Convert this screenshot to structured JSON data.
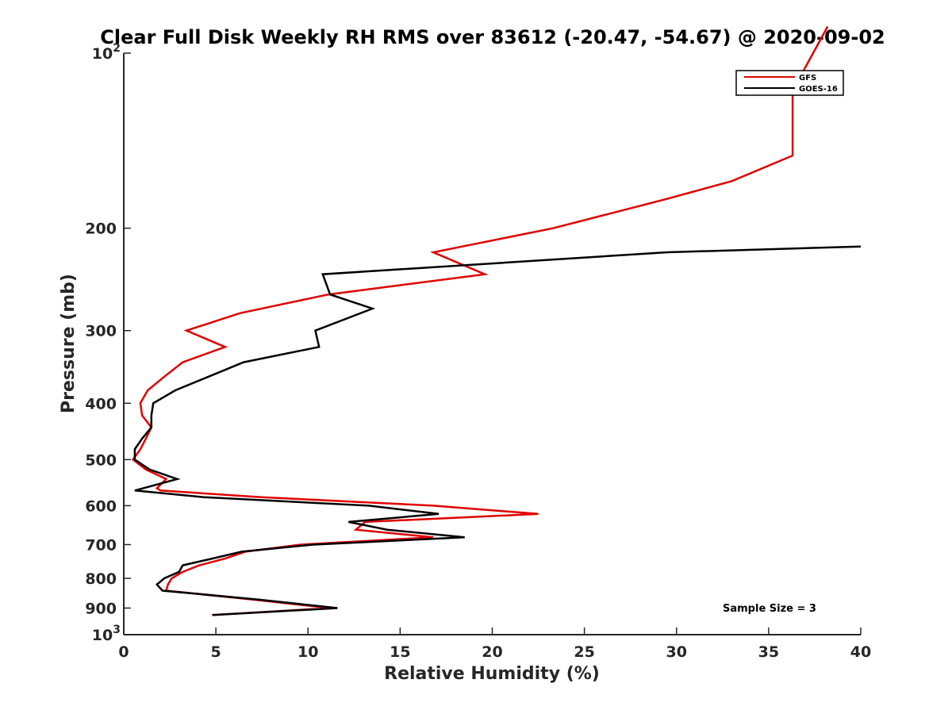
{
  "chart_data": {
    "type": "line",
    "title": "Clear Full Disk Weekly RH RMS over 83612 (-20.47, -54.67) @ 2020-09-02",
    "xlabel": "Relative Humidity (%)",
    "ylabel": "Pressure (mb)",
    "xlim": [
      0,
      40
    ],
    "ylim": [
      100,
      1000
    ],
    "y_scale": "log",
    "y_reversed": true,
    "x_ticks": [
      0,
      5,
      10,
      15,
      20,
      25,
      30,
      35,
      40
    ],
    "y_ticks": [
      {
        "value": 100,
        "label": "10",
        "sup": "2"
      },
      {
        "value": 200,
        "label": "200"
      },
      {
        "value": 300,
        "label": "300"
      },
      {
        "value": 400,
        "label": "400"
      },
      {
        "value": 500,
        "label": "500"
      },
      {
        "value": 600,
        "label": "600"
      },
      {
        "value": 700,
        "label": "700"
      },
      {
        "value": 800,
        "label": "800"
      },
      {
        "value": 900,
        "label": "900"
      },
      {
        "value": 1000,
        "label": "10",
        "sup": "3"
      }
    ],
    "grid": false,
    "legend_position": "top-right",
    "series": [
      {
        "name": "GFS",
        "color": "#e00000",
        "points": [
          [
            38.2,
            90
          ],
          [
            36.3,
            116
          ],
          [
            36.3,
            150
          ],
          [
            33.0,
            166
          ],
          [
            29.5,
            178
          ],
          [
            23.3,
            200
          ],
          [
            16.8,
            220
          ],
          [
            19.6,
            240
          ],
          [
            11.1,
            260
          ],
          [
            6.3,
            280
          ],
          [
            3.4,
            300
          ],
          [
            5.5,
            320
          ],
          [
            3.2,
            340
          ],
          [
            2.2,
            360
          ],
          [
            1.3,
            380
          ],
          [
            0.9,
            400
          ],
          [
            1.0,
            420
          ],
          [
            1.5,
            440
          ],
          [
            1.2,
            460
          ],
          [
            0.9,
            480
          ],
          [
            0.5,
            500
          ],
          [
            1.2,
            520
          ],
          [
            2.3,
            540
          ],
          [
            1.8,
            560
          ],
          [
            2.0,
            565
          ],
          [
            7.4,
            580
          ],
          [
            16.8,
            600
          ],
          [
            22.5,
            620
          ],
          [
            13.1,
            640
          ],
          [
            12.6,
            660
          ],
          [
            16.8,
            680
          ],
          [
            9.6,
            700
          ],
          [
            6.6,
            720
          ],
          [
            5.5,
            740
          ],
          [
            4.1,
            760
          ],
          [
            3.2,
            780
          ],
          [
            2.6,
            800
          ],
          [
            2.4,
            820
          ],
          [
            2.3,
            840
          ],
          [
            7.0,
            870
          ],
          [
            11.2,
            900
          ],
          [
            4.8,
            925
          ]
        ]
      },
      {
        "name": "GOES-16",
        "color": "#000000",
        "points": [
          [
            40.0,
            215
          ],
          [
            29.5,
            220
          ],
          [
            10.8,
            240
          ],
          [
            11.2,
            260
          ],
          [
            13.5,
            275
          ],
          [
            10.4,
            300
          ],
          [
            10.6,
            320
          ],
          [
            6.5,
            340
          ],
          [
            4.6,
            360
          ],
          [
            2.8,
            380
          ],
          [
            1.6,
            400
          ],
          [
            1.5,
            420
          ],
          [
            1.5,
            440
          ],
          [
            1.0,
            460
          ],
          [
            0.6,
            480
          ],
          [
            0.6,
            500
          ],
          [
            1.4,
            520
          ],
          [
            2.9,
            540
          ],
          [
            0.6,
            565
          ],
          [
            4.3,
            580
          ],
          [
            13.3,
            600
          ],
          [
            17.1,
            620
          ],
          [
            12.2,
            640
          ],
          [
            14.3,
            660
          ],
          [
            18.5,
            680
          ],
          [
            10.3,
            700
          ],
          [
            6.4,
            720
          ],
          [
            4.8,
            740
          ],
          [
            3.2,
            760
          ],
          [
            3.0,
            780
          ],
          [
            2.2,
            800
          ],
          [
            1.8,
            820
          ],
          [
            2.1,
            840
          ],
          [
            7.3,
            870
          ],
          [
            11.6,
            900
          ],
          [
            4.8,
            925
          ]
        ]
      }
    ],
    "annotation": "Sample Size = 3"
  }
}
